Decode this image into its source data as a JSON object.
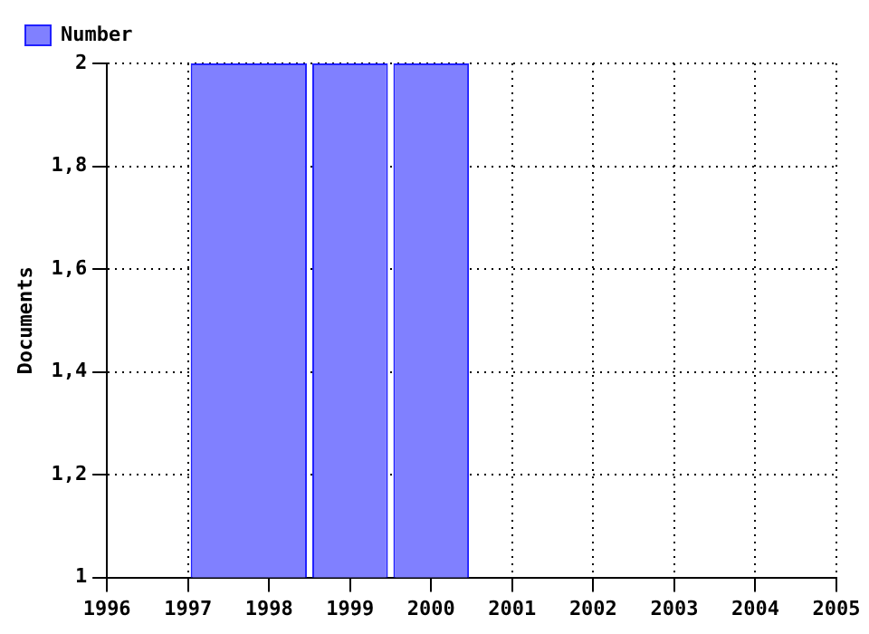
{
  "chart_data": {
    "type": "histogram",
    "ylabel": "Documents",
    "bins": [
      1997,
      1998.5,
      1999.5,
      2000.5
    ],
    "series": [
      {
        "name": "Number",
        "color": "#8080ff",
        "values": [
          2,
          2,
          2
        ]
      }
    ],
    "xlim": [
      1996,
      2005
    ],
    "xticks": [
      1996,
      1997,
      1998,
      1999,
      2000,
      2001,
      2002,
      2003,
      2004,
      2005
    ],
    "ylim": [
      1,
      2
    ],
    "yticks": [
      1,
      {
        "value": 1.2,
        "label": "1,2"
      },
      {
        "value": 1.4,
        "label": "1,4"
      },
      {
        "value": 1.6,
        "label": "1,6"
      },
      {
        "value": 1.8,
        "label": "1,8"
      },
      2
    ],
    "grid": true,
    "legend": "top left"
  }
}
